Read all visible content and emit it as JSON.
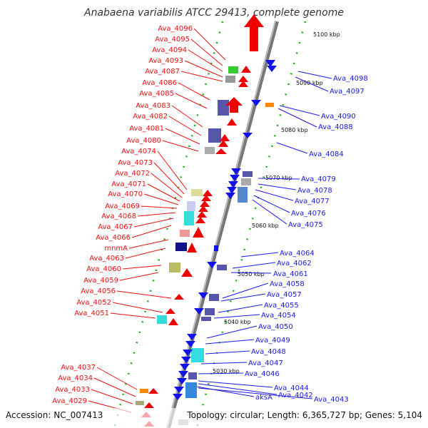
{
  "title": "Anabaena variabilis ATCC 29413, complete genome",
  "footer": {
    "accession": "Accession: NC_007413",
    "summary": "Topology: circular; Length: 6,365,727 bp; Genes: 5,104"
  },
  "colors": {
    "forward_label": "#ee1111",
    "reverse_label": "#1a1aee",
    "tick_mark": "#22aa22",
    "backbone": "#888888"
  },
  "tick_labels": [
    "5100 kbp",
    "5090 kbp",
    "5080 kbp",
    "5070 kbp",
    "5060 kbp",
    "5050 kbp",
    "5040 kbp",
    "5030 kbp"
  ],
  "forward_labels": [
    "Ava_4096",
    "Ava_4095",
    "Ava_4094",
    "Ava_4093",
    "Ava_4087",
    "Ava_4086",
    "Ava_4085",
    "Ava_4083",
    "Ava_4082",
    "Ava_4081",
    "Ava_4080",
    "Ava_4074",
    "Ava_4073",
    "Ava_4072",
    "Ava_4071",
    "Ava_4070",
    "Ava_4069",
    "Ava_4068",
    "Ava_4067",
    "Ava_4066",
    "mnmA",
    "Ava_4063",
    "Ava_4060",
    "Ava_4059",
    "Ava_4056",
    "Ava_4052",
    "Ava_4051",
    "Ava_4037",
    "Ava_4034",
    "Ava_4033",
    "Ava_4029"
  ],
  "reverse_labels": [
    "Ava_4098",
    "Ava_4097",
    "Ava_4090",
    "Ava_4088",
    "Ava_4084",
    "Ava_4079",
    "Ava_4078",
    "Ava_4077",
    "Ava_4076",
    "Ava_4075",
    "Ava_4064",
    "Ava_4062",
    "Ava_4061",
    "Ava_4058",
    "Ava_4057",
    "Ava_4055",
    "Ava_4054",
    "Ava_4050",
    "Ava_4049",
    "Ava_4048",
    "Ava_4047",
    "Ava_4046",
    "Ava_4044",
    "aksA",
    "Ava_4042",
    "Ava_4043"
  ]
}
